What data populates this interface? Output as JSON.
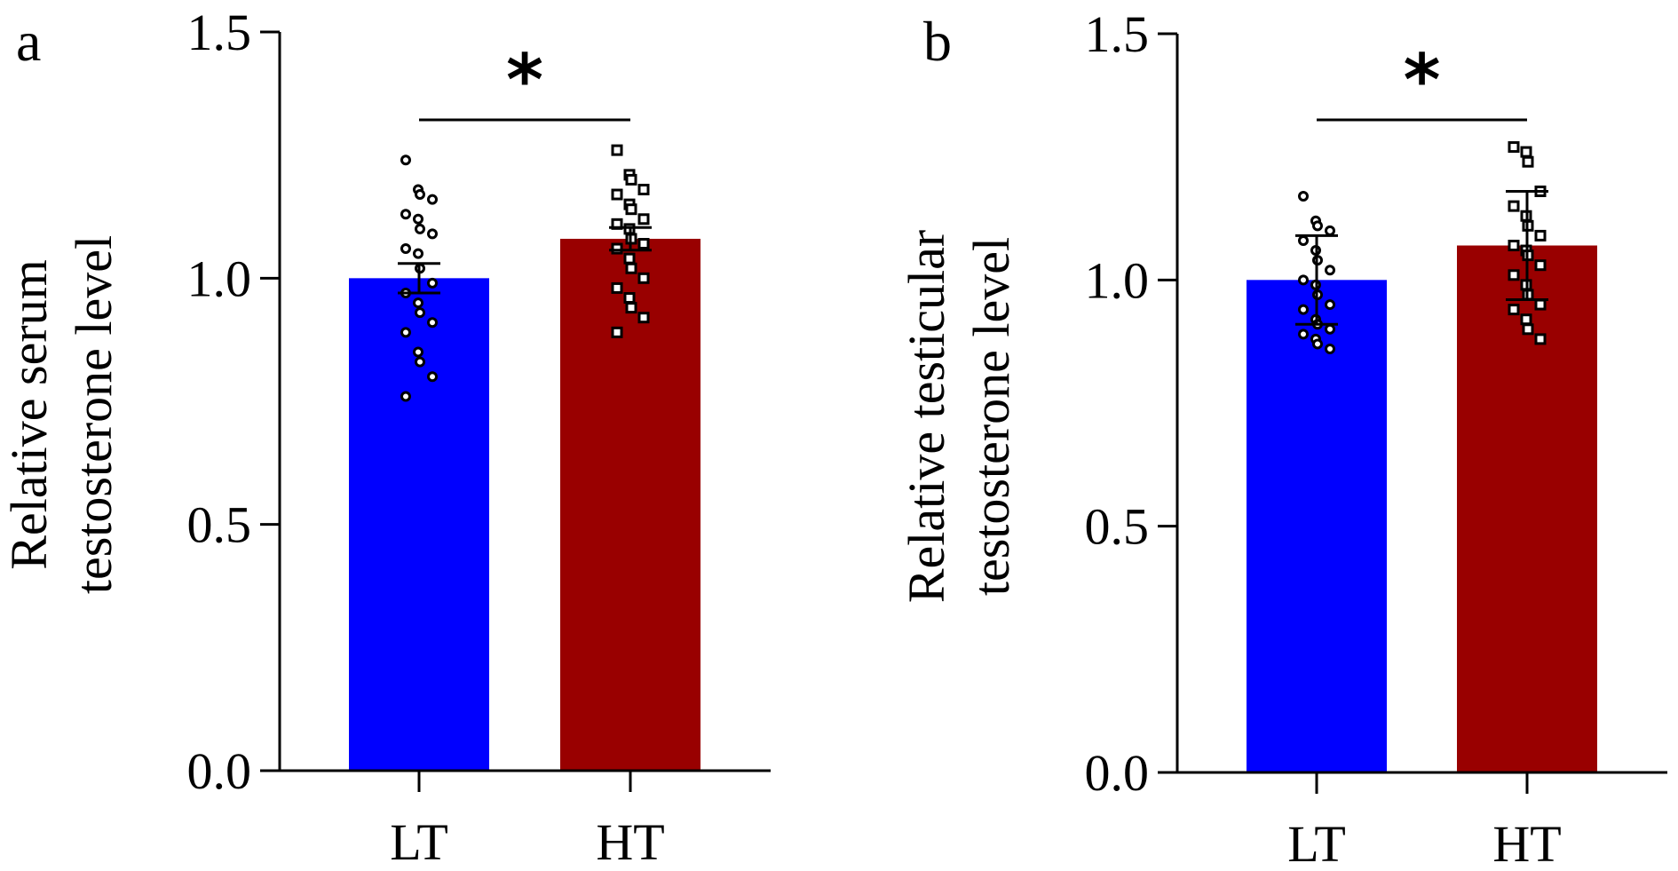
{
  "chart_data": [
    {
      "panel": "a",
      "type": "bar",
      "categories": [
        "LT",
        "HT"
      ],
      "values": [
        1.0,
        1.08
      ],
      "error": [
        0.03,
        0.023
      ],
      "colors": [
        "#0000ff",
        "#990000"
      ],
      "ylabel_lines": [
        "Relative serum",
        "testosterone level"
      ],
      "ylim": [
        0,
        1.5
      ],
      "yticks": [
        "0.0",
        "0.5",
        "1.0",
        "1.5"
      ],
      "significance": "*",
      "points": [
        [
          1.24,
          1.18,
          1.17,
          1.16,
          1.13,
          1.12,
          1.1,
          1.09,
          1.06,
          1.05,
          1.02,
          0.99,
          0.97,
          0.95,
          0.93,
          0.91,
          0.89,
          0.85,
          0.83,
          0.8,
          0.76
        ],
        [
          1.26,
          1.21,
          1.2,
          1.18,
          1.17,
          1.15,
          1.14,
          1.12,
          1.11,
          1.1,
          1.08,
          1.07,
          1.06,
          1.04,
          1.02,
          1.0,
          0.98,
          0.96,
          0.94,
          0.92,
          0.89
        ]
      ]
    },
    {
      "panel": "b",
      "type": "bar",
      "categories": [
        "LT",
        "HT"
      ],
      "values": [
        1.0,
        1.07
      ],
      "error": [
        0.09,
        0.11
      ],
      "colors": [
        "#0000ff",
        "#990000"
      ],
      "ylabel_lines": [
        "Relative testicular",
        "testosterone level"
      ],
      "ylim": [
        0,
        1.5
      ],
      "yticks": [
        "0.0",
        "0.5",
        "1.0",
        "1.5"
      ],
      "significance": "*",
      "points": [
        [
          1.17,
          1.12,
          1.11,
          1.1,
          1.08,
          1.06,
          1.04,
          1.02,
          1.0,
          0.99,
          0.97,
          0.95,
          0.94,
          0.92,
          0.91,
          0.9,
          0.89,
          0.88,
          0.87,
          0.86
        ],
        [
          1.27,
          1.26,
          1.24,
          1.18,
          1.15,
          1.13,
          1.11,
          1.09,
          1.07,
          1.06,
          1.05,
          1.03,
          1.01,
          0.99,
          0.97,
          0.95,
          0.94,
          0.92,
          0.9,
          0.88
        ]
      ]
    }
  ]
}
